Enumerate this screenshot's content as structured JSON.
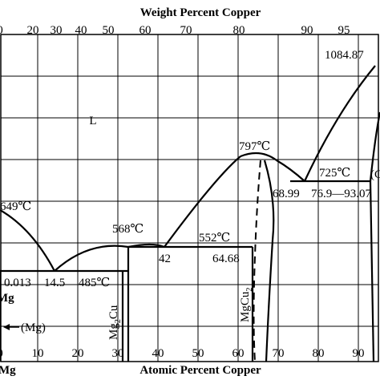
{
  "top_axis": {
    "title": "Weight Percent Copper",
    "ticks": [
      "0",
      "20",
      "30",
      "40",
      "50",
      "60",
      "70",
      "80",
      "90",
      "95"
    ]
  },
  "bottom_axis": {
    "title": "Atomic Percent Copper",
    "ticks": [
      "0",
      "10",
      "20",
      "30",
      "40",
      "50",
      "60",
      "70",
      "80",
      "90"
    ]
  },
  "left_label_mg": "Mg",
  "bottom_left_label": "Mg",
  "phase_labels": {
    "liquid": "L",
    "mg": "(Mg)",
    "mg2cu_main": "Mg",
    "mg2cu_sub": "2",
    "mg2cu_tail": "Cu",
    "mgcu2_main": "MgCu",
    "mgcu2_sub": "2",
    "cu_partial": "(C"
  },
  "annotations": {
    "t_cu_melt": "1084.87",
    "t_mg_melt": "649℃",
    "t_mg2cu": "568℃",
    "t_mgcu2": "797℃",
    "t_eut1": "485℃",
    "t_eut2": "552℃",
    "t_eut3": "725℃",
    "c_0013": "0.013",
    "c_145": "14.5",
    "c_42": "42",
    "c_6468": "64.68",
    "c_6899": "68.99",
    "c_769_9307": "76.9—93.07"
  }
}
